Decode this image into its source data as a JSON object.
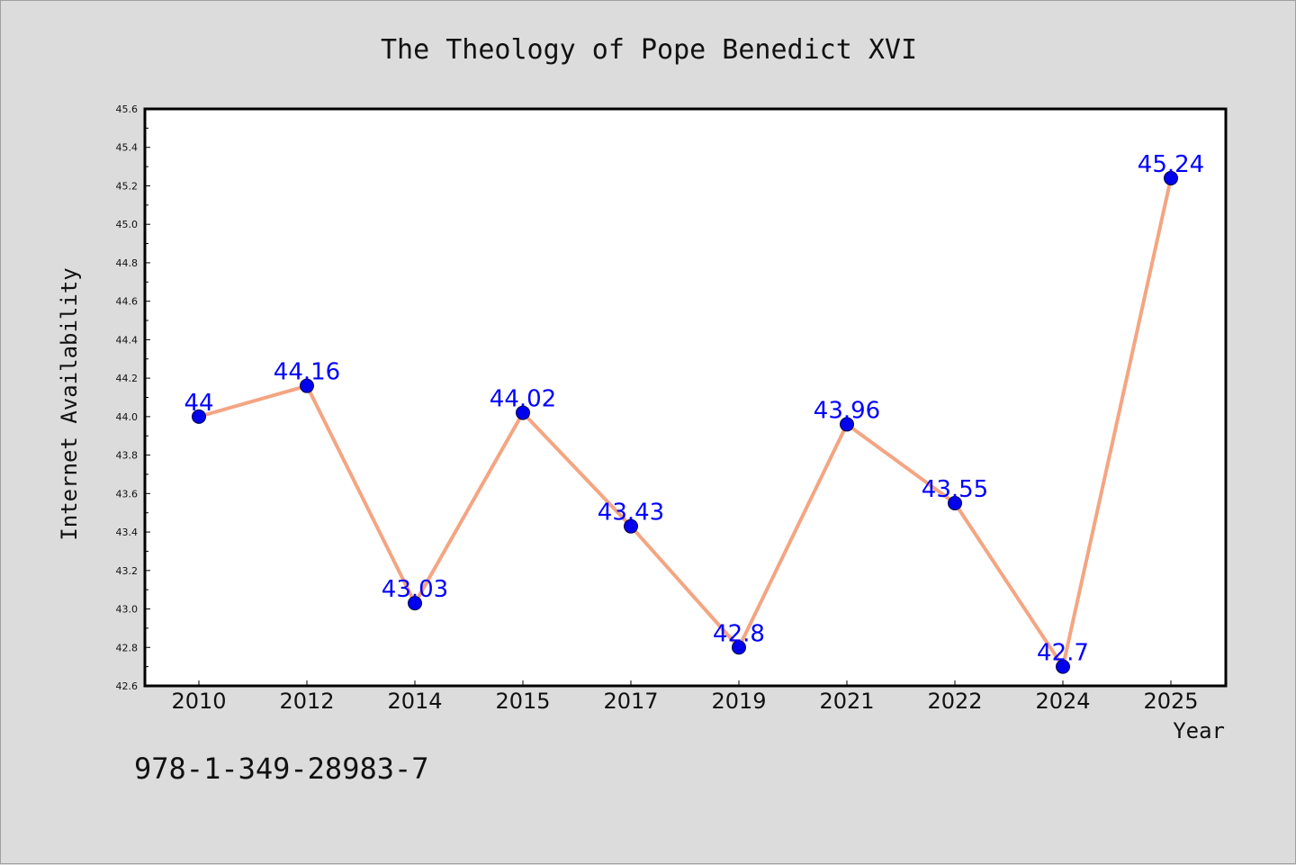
{
  "chart_data": {
    "type": "line",
    "title": "The Theology of Pope Benedict XVI",
    "xlabel": "Year",
    "ylabel": "Internet Availability",
    "categories": [
      "2010",
      "2012",
      "2014",
      "2015",
      "2017",
      "2019",
      "2021",
      "2022",
      "2024",
      "2025"
    ],
    "series": [
      {
        "values": [
          44,
          44.16,
          43.03,
          44.02,
          43.43,
          42.8,
          43.96,
          43.55,
          42.7,
          45.24
        ],
        "labels": [
          "44",
          "44.16",
          "43.03",
          "44.02",
          "43.43",
          "42.8",
          "43.96",
          "43.55",
          "42.7",
          "45.24"
        ],
        "line_color": "#f4a582",
        "marker_color": "#0000ee",
        "label_color": "#0000ff"
      }
    ],
    "ylim": [
      42.6,
      45.6
    ],
    "yticks": [
      "42.6",
      "42.8",
      "43.0",
      "43.2",
      "43.4",
      "43.6",
      "43.8",
      "44.0",
      "44.2",
      "44.4",
      "44.6",
      "44.8",
      "45.0",
      "45.2",
      "45.4",
      "45.6"
    ],
    "grid": false,
    "legend": "none"
  },
  "footer": {
    "code": "978-1-349-28983-7"
  },
  "colors": {
    "background": "#dcdcdc",
    "plot_background": "#ffffff"
  }
}
